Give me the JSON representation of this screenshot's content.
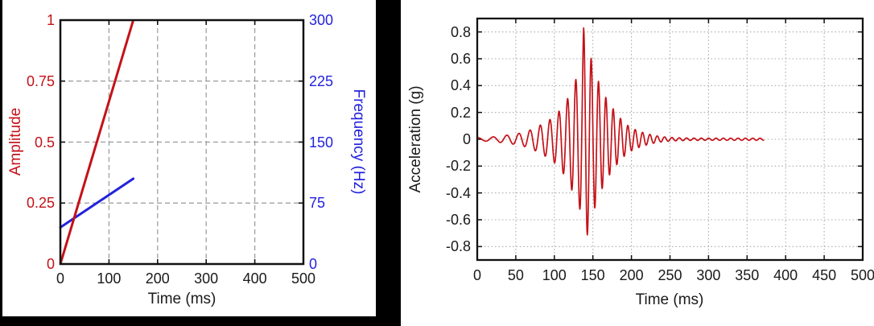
{
  "chart_data": [
    {
      "id": "sweep-profile",
      "type": "line",
      "title": "",
      "xlabel": "Time (ms)",
      "ylabel_left": "Amplitude",
      "ylabel_right": "Frequency (Hz)",
      "xlim": [
        0,
        500
      ],
      "x_ticks": [
        0,
        100,
        200,
        300,
        400,
        500
      ],
      "ylim_left": [
        0,
        1
      ],
      "y_ticks_left": [
        0,
        0.25,
        0.5,
        0.75,
        1
      ],
      "ylim_right": [
        0,
        300
      ],
      "y_ticks_right": [
        0,
        75,
        150,
        225,
        300
      ],
      "grid": "dashed",
      "legend": "none",
      "series": [
        {
          "name": "Amplitude",
          "axis": "left",
          "color": "#c41218",
          "points": [
            [
              0,
              0
            ],
            [
              150,
              1
            ]
          ]
        },
        {
          "name": "Frequency (Hz)",
          "axis": "right",
          "color": "#2222dd",
          "points": [
            [
              0,
              45
            ],
            [
              150,
              105
            ]
          ]
        }
      ]
    },
    {
      "id": "acceleration-record",
      "type": "line",
      "title": "",
      "xlabel": "Time (ms)",
      "ylabel": "Acceleration (g)",
      "xlim": [
        0,
        500
      ],
      "x_ticks": [
        0,
        50,
        100,
        150,
        200,
        250,
        300,
        350,
        400,
        450,
        500
      ],
      "ylim": [
        -0.9,
        0.9
      ],
      "y_ticks": [
        0.8,
        0.6,
        0.4,
        0.2,
        0,
        -0.2,
        -0.4,
        -0.6,
        -0.8
      ],
      "grid": "dotted",
      "legend": "none",
      "series": [
        {
          "name": "Acceleration",
          "color": "#c41218",
          "signal": {
            "kind": "swept-sine burst",
            "t_start_ms": 0,
            "t_end_ms": 372,
            "f0_hz": 45,
            "f1_hz": 105,
            "sweep_end_ms": 150,
            "phase_offset_cycles": 0.231,
            "peak_g": 0.83,
            "peak_time_ms": 138,
            "trough_g": -0.75,
            "trough_time_ms": 142,
            "envelope_keypoints_ms_g": [
              [
                0,
                0.012
              ],
              [
                15,
                0.015
              ],
              [
                25,
                0.02
              ],
              [
                35,
                0.028
              ],
              [
                45,
                0.035
              ],
              [
                55,
                0.045
              ],
              [
                65,
                0.06
              ],
              [
                75,
                0.085
              ],
              [
                85,
                0.115
              ],
              [
                95,
                0.15
              ],
              [
                105,
                0.2
              ],
              [
                112,
                0.26
              ],
              [
                118,
                0.31
              ],
              [
                124,
                0.4
              ],
              [
                129,
                0.46
              ],
              [
                133,
                0.52
              ],
              [
                136,
                0.62
              ],
              [
                138,
                0.83
              ],
              [
                141,
                0.8
              ],
              [
                144,
                0.66
              ],
              [
                147,
                0.62
              ],
              [
                151,
                0.54
              ],
              [
                156,
                0.45
              ],
              [
                161,
                0.38
              ],
              [
                166,
                0.32
              ],
              [
                171,
                0.27
              ],
              [
                176,
                0.23
              ],
              [
                181,
                0.19
              ],
              [
                186,
                0.155
              ],
              [
                191,
                0.125
              ],
              [
                196,
                0.1
              ],
              [
                202,
                0.08
              ],
              [
                208,
                0.065
              ],
              [
                214,
                0.052
              ],
              [
                220,
                0.042
              ],
              [
                227,
                0.032
              ],
              [
                234,
                0.024
              ],
              [
                242,
                0.018
              ],
              [
                250,
                0.014
              ],
              [
                260,
                0.011
              ],
              [
                275,
                0.009
              ],
              [
                300,
                0.008
              ],
              [
                330,
                0.008
              ],
              [
                372,
                0.008
              ]
            ]
          }
        }
      ]
    }
  ],
  "colors": {
    "amplitude_red": "#c41218",
    "frequency_blue": "#2222dd",
    "waveform_red": "#c41218",
    "tick_text": "#1a1a1a",
    "frame": "#111111",
    "grid_dashed": "#999999",
    "grid_dotted": "#adadad",
    "filler_black": "#000000"
  }
}
